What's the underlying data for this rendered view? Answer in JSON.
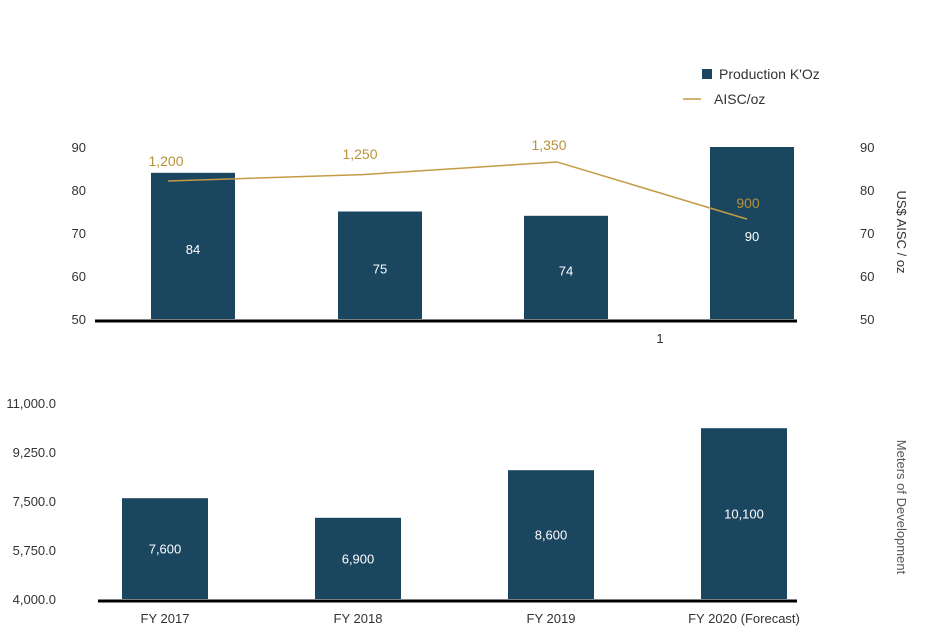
{
  "colors": {
    "bar": "#1b4660",
    "line": "#c49a45",
    "line_label": "#b8913a",
    "axis_text": "#333333"
  },
  "chart_data": [
    {
      "type": "bar",
      "title": "",
      "categories": [
        "FY 2017",
        "FY 2018",
        "FY 2019",
        "FY 2020 (Forecast)"
      ],
      "series": [
        {
          "name": "Production K'Oz",
          "type": "bar",
          "values": [
            84,
            75,
            74,
            90
          ],
          "labels": [
            "84",
            "75",
            "74",
            "90"
          ]
        },
        {
          "name": "AISC/oz",
          "type": "line",
          "values": [
            1200,
            1250,
            1350,
            900
          ],
          "labels": [
            "1,200",
            "1,250",
            "1,350",
            "900"
          ]
        }
      ],
      "ylim": [
        50,
        90
      ],
      "yticks": [
        "50",
        "60",
        "70",
        "80",
        "90"
      ],
      "y2ticks": [
        "50",
        "60",
        "70",
        "80",
        "90"
      ],
      "y2label": "US$ AISC / oz",
      "xtick_stray": "1",
      "legend": {
        "placement": "top-right",
        "entries": [
          "Production K'Oz",
          "AISC/oz"
        ]
      }
    },
    {
      "type": "bar",
      "categories": [
        "FY 2017",
        "FY 2018",
        "FY 2019",
        "FY 2020 (Forecast)"
      ],
      "series": [
        {
          "name": "Meters of Development",
          "values": [
            7600,
            6900,
            8600,
            10100
          ],
          "labels": [
            "7,600",
            "6,900",
            "8,600",
            "10,100"
          ]
        }
      ],
      "ylim": [
        4000,
        11000
      ],
      "yticks": [
        "4,000.0",
        "5,750.0",
        "7,500.0",
        "9,250.0",
        "11,000.0"
      ],
      "ylabel": "Meters of Development"
    }
  ]
}
